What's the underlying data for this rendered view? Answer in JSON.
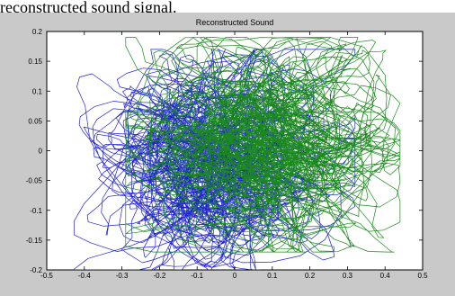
{
  "caption": "reconstructed sound signal.",
  "chart_data": {
    "type": "line",
    "title": "Reconstructed Sound",
    "xlabel": "",
    "ylabel": "",
    "xlim": [
      -0.5,
      0.5
    ],
    "ylim": [
      -0.2,
      0.2
    ],
    "x_ticks": [
      -0.5,
      -0.4,
      -0.3,
      -0.2,
      -0.1,
      0,
      0.1,
      0.2,
      0.3,
      0.4,
      0.5
    ],
    "x_tick_labels": [
      "-0.5",
      "-0.4",
      "-0.3",
      "-0.2",
      "-0.1",
      "0",
      "0.1",
      "0.2",
      "0.3",
      "0.4",
      "0.5"
    ],
    "y_ticks": [
      0.2,
      0.15,
      0.1,
      0.05,
      0,
      -0.05,
      -0.1,
      -0.15,
      -0.2
    ],
    "y_tick_labels": [
      "0.2",
      "0.15",
      "0.1",
      "0.05",
      "0",
      "-0.05",
      "-0.1",
      "-0.15",
      "-0.2"
    ],
    "grid": false,
    "legend": "none",
    "series": [
      {
        "color": "#2020d8",
        "x_range": [
          -0.43,
          0.32
        ],
        "y_range": [
          -0.2,
          0.17
        ],
        "spread": [
          0.11,
          0.055
        ]
      },
      {
        "color": "#1a8a1a",
        "x_range": [
          -0.29,
          0.44
        ],
        "y_range": [
          -0.17,
          0.19
        ],
        "spread": [
          0.12,
          0.06
        ]
      }
    ]
  }
}
